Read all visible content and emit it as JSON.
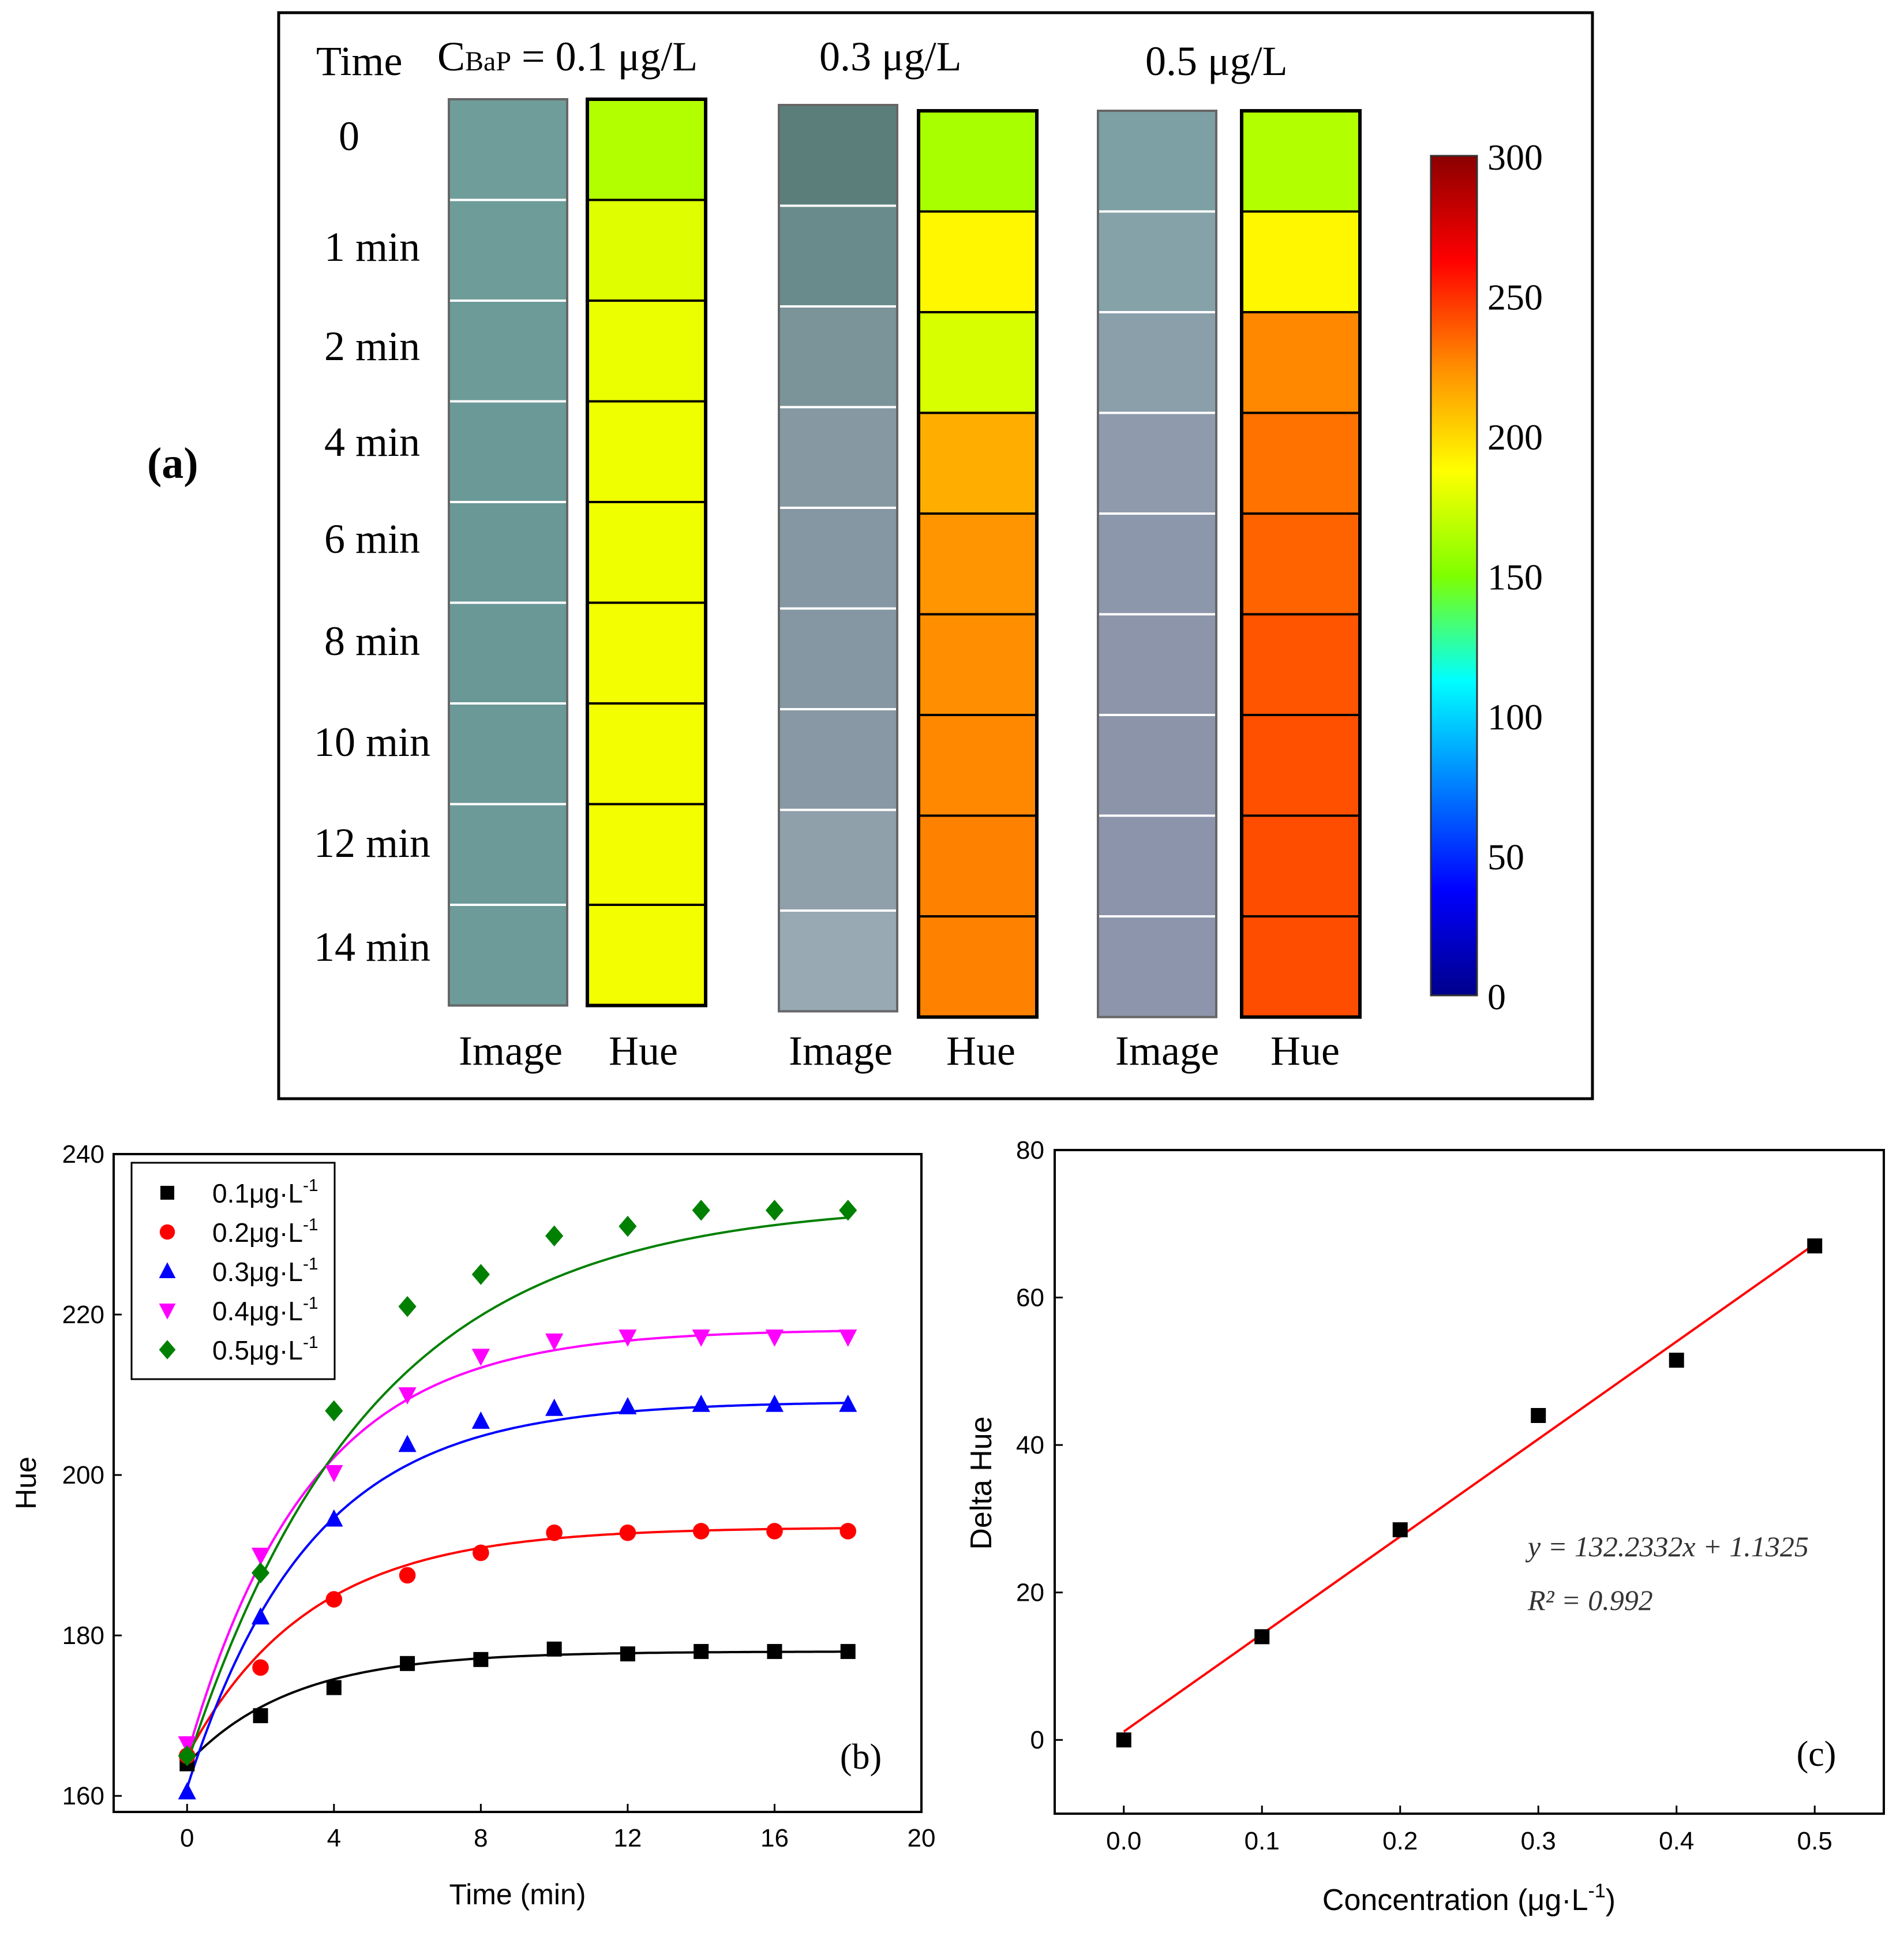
{
  "panel_a": {
    "label": "(a)",
    "time_header": "Time",
    "concentration_prefix": "C",
    "concentration_subscript": "BaP",
    "concentration_first": " = 0.1 μg/L",
    "concentration_headers": [
      "0.3 μg/L",
      "0.5 μg/L"
    ],
    "time_labels": [
      "0",
      "1 min",
      "2 min",
      "4 min",
      "6 min",
      "8 min",
      "10 min",
      "12 min",
      "14 min"
    ],
    "column_labels": [
      "Image",
      "Hue",
      "Image",
      "Hue",
      "Image",
      "Hue"
    ],
    "colorbar_ticks": [
      "300",
      "250",
      "200",
      "150",
      "100",
      "50",
      "0"
    ],
    "colorbar_colors": [
      "#8b0000",
      "#ff0000",
      "#ff8c00",
      "#ffff00",
      "#7fff00",
      "#00ffff",
      "#0080ff",
      "#0000ff",
      "#00008b"
    ],
    "strip_hue_values": {
      "c01": [
        165,
        178,
        182,
        183,
        183,
        184,
        184,
        184,
        184
      ],
      "c03": [
        162,
        190,
        176,
        214,
        222,
        224,
        226,
        228,
        228
      ],
      "c05": [
        165,
        190,
        226,
        232,
        236,
        240,
        241,
        242,
        242
      ]
    }
  },
  "chart_data": [
    {
      "id": "b",
      "type": "scatter",
      "panel_label": "(b)",
      "xlabel": "Time (min)",
      "ylabel": "Hue",
      "xlim": [
        -2,
        20
      ],
      "ylim": [
        158,
        240
      ],
      "xticks": [
        0,
        4,
        8,
        12,
        16,
        20
      ],
      "yticks": [
        160,
        180,
        200,
        220,
        240
      ],
      "x": [
        0,
        2,
        4,
        6,
        8,
        10,
        12,
        14,
        16,
        18
      ],
      "legend_position": "top-left",
      "series": [
        {
          "name": "0.1μg·L",
          "marker": "square",
          "color": "#000000",
          "values": [
            164,
            170,
            173.5,
            176.5,
            177,
            178.3,
            177.7,
            178,
            178,
            178
          ],
          "fit": {
            "y0": 164,
            "A": 14,
            "k": 0.35
          }
        },
        {
          "name": "0.2μg·L",
          "marker": "circle",
          "color": "#ff0000",
          "values": [
            165,
            176,
            184.5,
            187.5,
            190.3,
            192.8,
            192.8,
            193,
            193,
            193
          ],
          "fit": {
            "y0": 165,
            "A": 28.5,
            "k": 0.3
          }
        },
        {
          "name": "0.3μg·L",
          "marker": "triangle-up",
          "color": "#0000ff",
          "values": [
            160.5,
            182.3,
            194.5,
            203.8,
            206.7,
            208.3,
            208.5,
            208.8,
            208.8,
            208.8
          ],
          "fit": {
            "y0": 161,
            "A": 48.2,
            "k": 0.3
          }
        },
        {
          "name": "0.4μg·L",
          "marker": "triangle-down",
          "color": "#ff00ff",
          "values": [
            166.5,
            190,
            200.3,
            210,
            214.8,
            216.7,
            217.2,
            217.2,
            217.2,
            217.2
          ],
          "fit": {
            "y0": 165,
            "A": 53.2,
            "k": 0.3
          }
        },
        {
          "name": "0.5μg·L",
          "marker": "diamond",
          "color": "#008000",
          "values": [
            165,
            187.8,
            208,
            221,
            225,
            229.8,
            231,
            233,
            233,
            233
          ],
          "fit": {
            "y0": 164,
            "A": 70,
            "k": 0.2
          }
        }
      ],
      "legend_superscript": "-1"
    },
    {
      "id": "c",
      "type": "scatter",
      "panel_label": "(c)",
      "xlabel": "Concentration (μg·L",
      "xlabel_superscript": "-1",
      "xlabel_tail": ")",
      "ylabel": "Delta Hue",
      "xlim": [
        -0.05,
        0.55
      ],
      "ylim": [
        -10,
        80
      ],
      "xticks": [
        0.0,
        0.1,
        0.2,
        0.3,
        0.4,
        0.5
      ],
      "yticks": [
        0,
        20,
        40,
        60,
        80
      ],
      "series": [
        {
          "name": "Delta Hue",
          "marker": "square",
          "color": "#000000",
          "x": [
            0.0,
            0.1,
            0.2,
            0.3,
            0.4,
            0.5
          ],
          "values": [
            0,
            14,
            28.5,
            44,
            51.5,
            67
          ]
        }
      ],
      "fit_line": {
        "slope": 132.2332,
        "intercept": 1.1325,
        "x_range": [
          0,
          0.5
        ],
        "color": "#ff0000"
      },
      "equation": "y = 132.2332x + 1.1325",
      "r2": "R² = 0.992"
    }
  ]
}
